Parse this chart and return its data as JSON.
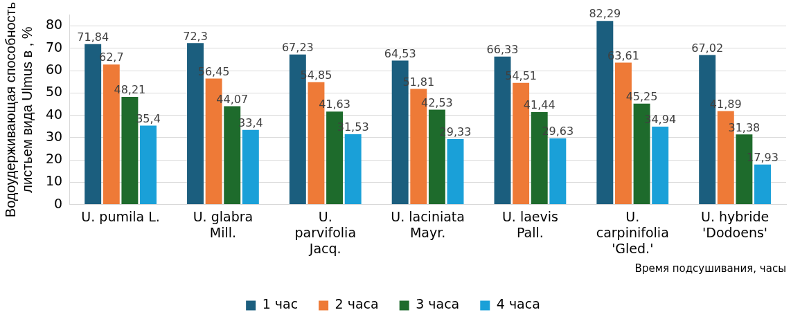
{
  "chart_data": {
    "type": "bar",
    "xlabel": "Время подсушивания, часы",
    "ylabel": "Водоудерживающая способность листьем вида Ulmus в , %",
    "categories": [
      "U. pumila L.",
      "U. glabra Mill.",
      "U. parvifolia Jacq.",
      "U. laciniata Mayr.",
      "U. laevis Pall.",
      "U. carpinifolia 'Gled.'",
      "U. hybride 'Dodoens'"
    ],
    "series": [
      {
        "name": "1 час",
        "color": "#1b5e7e",
        "values": [
          71.84,
          72.3,
          67.23,
          64.53,
          66.33,
          82.29,
          67.02
        ],
        "value_labels": [
          "71,84",
          "72,3",
          "67,23",
          "64,53",
          "66,33",
          "82,29",
          "67,02"
        ]
      },
      {
        "name": "2 часа",
        "color": "#ee7a37",
        "values": [
          62.7,
          56.45,
          54.85,
          51.81,
          54.51,
          63.61,
          41.89
        ],
        "value_labels": [
          "62,7",
          "56,45",
          "54,85",
          "51,81",
          "54,51",
          "63,61",
          "41,89"
        ]
      },
      {
        "name": "3 часа",
        "color": "#1e6b2c",
        "values": [
          48.21,
          44.07,
          41.63,
          42.53,
          41.44,
          45.25,
          31.38
        ],
        "value_labels": [
          "48,21",
          "44,07",
          "41,63",
          "42,53",
          "41,44",
          "45,25",
          "31,38"
        ]
      },
      {
        "name": "4 часа",
        "color": "#1aa0d8",
        "values": [
          35.4,
          33.4,
          31.53,
          29.33,
          29.63,
          34.94,
          17.93
        ],
        "value_labels": [
          "35,4",
          "33,4",
          "31,53",
          "29,33",
          "29,63",
          "34,94",
          "17,93"
        ]
      }
    ],
    "ylim": [
      0,
      85
    ],
    "yticks": [
      0,
      10,
      20,
      30,
      40,
      50,
      60,
      70,
      80
    ],
    "grid": "y",
    "legend": "bottom"
  }
}
